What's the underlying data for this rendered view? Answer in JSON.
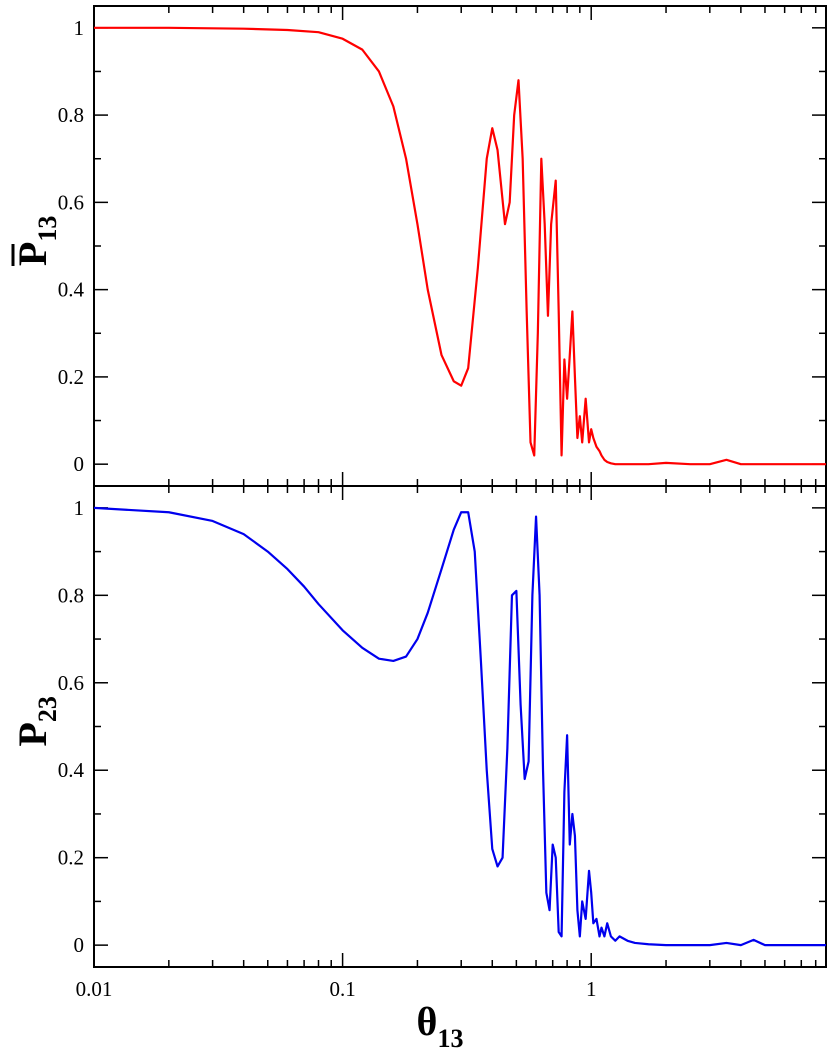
{
  "chart_data": [
    {
      "type": "line",
      "xscale": "log",
      "xlim": [
        0.01,
        8.8
      ],
      "ylim": [
        -0.05,
        1.05
      ],
      "ylabel_main": "P",
      "ylabel_sub": "13",
      "ylabel_overbar": true,
      "xlabel": "",
      "yticks": [
        "0",
        "0.2",
        "0.4",
        "0.6",
        "0.8",
        "1"
      ],
      "ytick_values": [
        0,
        0.2,
        0.4,
        0.6,
        0.8,
        1
      ],
      "grid": false,
      "series": [
        {
          "color": "#ff0000",
          "x": [
            0.01,
            0.02,
            0.04,
            0.06,
            0.08,
            0.1,
            0.12,
            0.14,
            0.16,
            0.18,
            0.2,
            0.22,
            0.25,
            0.28,
            0.3,
            0.32,
            0.35,
            0.38,
            0.4,
            0.42,
            0.45,
            0.47,
            0.49,
            0.51,
            0.53,
            0.55,
            0.57,
            0.59,
            0.61,
            0.63,
            0.65,
            0.67,
            0.69,
            0.72,
            0.74,
            0.76,
            0.78,
            0.8,
            0.82,
            0.84,
            0.86,
            0.88,
            0.9,
            0.92,
            0.95,
            0.98,
            1.0,
            1.02,
            1.05,
            1.08,
            1.1,
            1.13,
            1.16,
            1.2,
            1.25,
            1.3,
            1.4,
            1.5,
            1.7,
            2.0,
            2.5,
            3.0,
            3.5,
            4.0,
            4.5,
            5.0,
            6.0,
            8.8
          ],
          "y": [
            1.0,
            1.0,
            0.998,
            0.995,
            0.99,
            0.975,
            0.95,
            0.9,
            0.82,
            0.7,
            0.55,
            0.4,
            0.25,
            0.19,
            0.18,
            0.22,
            0.45,
            0.7,
            0.77,
            0.72,
            0.55,
            0.6,
            0.8,
            0.88,
            0.7,
            0.35,
            0.05,
            0.02,
            0.3,
            0.7,
            0.55,
            0.34,
            0.55,
            0.65,
            0.35,
            0.02,
            0.24,
            0.15,
            0.25,
            0.35,
            0.2,
            0.06,
            0.11,
            0.05,
            0.15,
            0.05,
            0.08,
            0.06,
            0.04,
            0.03,
            0.02,
            0.01,
            0.005,
            0.002,
            0.0,
            0.0,
            0.0,
            0.0,
            0.0,
            0.003,
            0.0,
            0.0,
            0.01,
            0.0,
            0.0,
            0.0,
            0.0,
            0.0
          ]
        }
      ]
    },
    {
      "type": "line",
      "xscale": "log",
      "xlim": [
        0.01,
        8.8
      ],
      "ylim": [
        -0.05,
        1.05
      ],
      "ylabel_main": "P",
      "ylabel_sub": "23",
      "ylabel_overbar": false,
      "xlabel_main": "θ",
      "xlabel_sub": "13",
      "yticks": [
        "0",
        "0.2",
        "0.4",
        "0.6",
        "0.8",
        "1"
      ],
      "ytick_values": [
        0,
        0.2,
        0.4,
        0.6,
        0.8,
        1
      ],
      "xticks": [
        "0.01",
        "0.1",
        "1"
      ],
      "xtick_values": [
        0.01,
        0.1,
        1
      ],
      "grid": false,
      "series": [
        {
          "color": "#0000ee",
          "x": [
            0.01,
            0.02,
            0.03,
            0.04,
            0.05,
            0.06,
            0.07,
            0.08,
            0.1,
            0.12,
            0.14,
            0.16,
            0.18,
            0.2,
            0.22,
            0.25,
            0.28,
            0.3,
            0.32,
            0.34,
            0.36,
            0.38,
            0.4,
            0.42,
            0.44,
            0.46,
            0.48,
            0.5,
            0.52,
            0.54,
            0.56,
            0.58,
            0.6,
            0.62,
            0.64,
            0.66,
            0.68,
            0.7,
            0.72,
            0.74,
            0.76,
            0.78,
            0.8,
            0.82,
            0.84,
            0.86,
            0.88,
            0.9,
            0.92,
            0.95,
            0.98,
            1.0,
            1.02,
            1.05,
            1.08,
            1.1,
            1.13,
            1.16,
            1.2,
            1.25,
            1.3,
            1.4,
            1.5,
            1.7,
            2.0,
            2.5,
            3.0,
            3.5,
            4.0,
            4.5,
            5.0,
            6.0,
            8.8
          ],
          "y": [
            1.0,
            0.99,
            0.97,
            0.94,
            0.9,
            0.86,
            0.82,
            0.78,
            0.72,
            0.68,
            0.655,
            0.65,
            0.66,
            0.7,
            0.76,
            0.86,
            0.95,
            0.99,
            0.99,
            0.9,
            0.65,
            0.4,
            0.22,
            0.18,
            0.2,
            0.45,
            0.8,
            0.81,
            0.55,
            0.38,
            0.42,
            0.8,
            0.98,
            0.8,
            0.4,
            0.12,
            0.08,
            0.23,
            0.2,
            0.03,
            0.02,
            0.35,
            0.48,
            0.23,
            0.3,
            0.25,
            0.08,
            0.02,
            0.1,
            0.06,
            0.17,
            0.12,
            0.05,
            0.06,
            0.02,
            0.04,
            0.02,
            0.05,
            0.02,
            0.01,
            0.02,
            0.01,
            0.005,
            0.002,
            0.0,
            0.0,
            0.0,
            0.005,
            0.0,
            0.012,
            0.0,
            0.0,
            0.0
          ]
        }
      ]
    }
  ]
}
